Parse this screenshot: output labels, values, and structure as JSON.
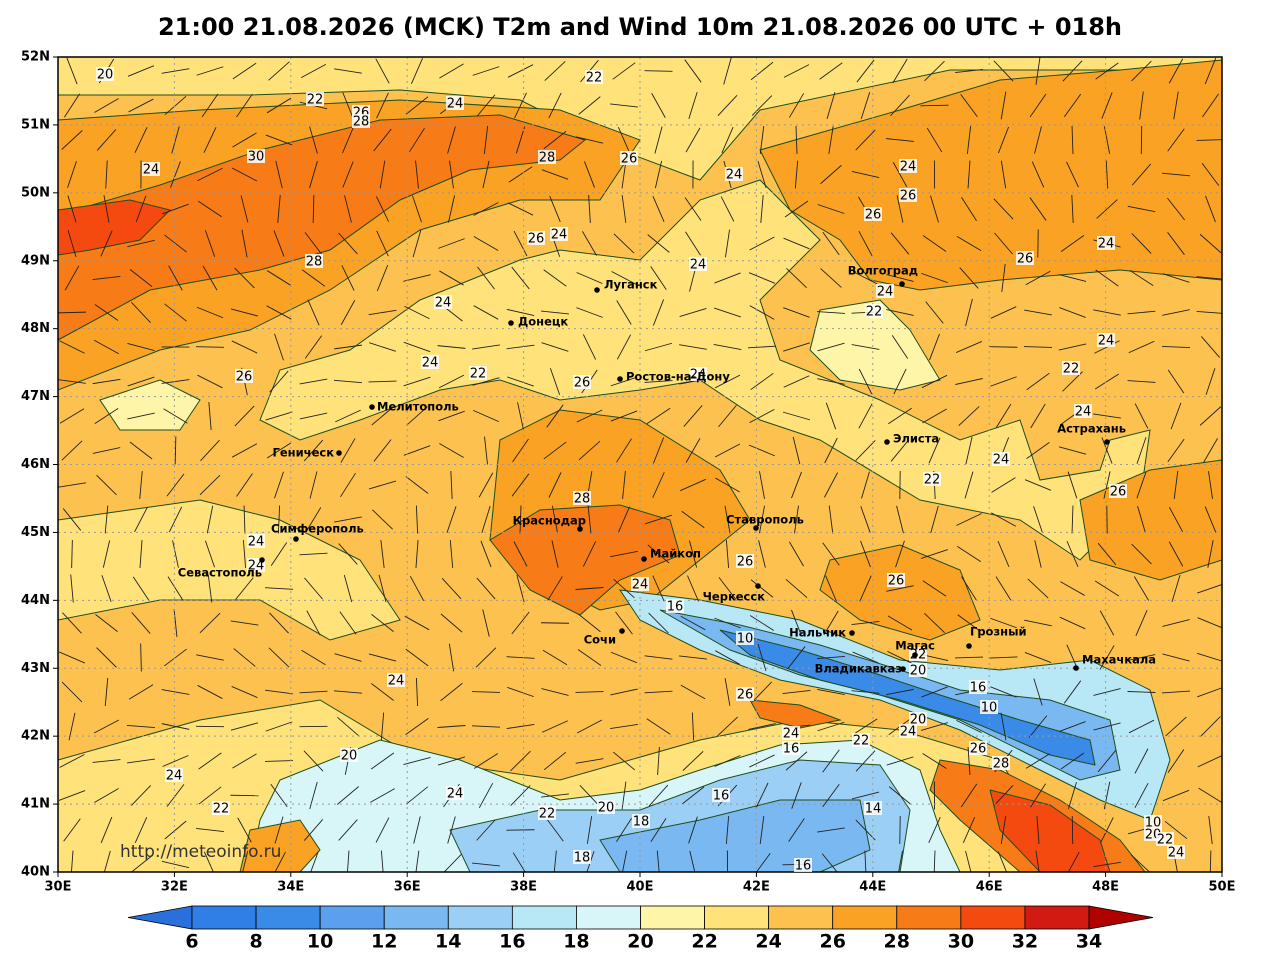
{
  "title": "21:00 21.08.2026 (MCK) T2m and Wind 10m 21.08.2026 00 UTC + 018h",
  "map": {
    "lat_labels": [
      "52N",
      "51N",
      "50N",
      "49N",
      "48N",
      "47N",
      "46N",
      "45N",
      "44N",
      "43N",
      "42N",
      "41N",
      "40N"
    ],
    "lon_labels": [
      "30E",
      "32E",
      "34E",
      "36E",
      "38E",
      "40E",
      "42E",
      "44E",
      "46E",
      "48E",
      "50E"
    ],
    "cities": [
      "Луганск",
      "Донецк",
      "Ростов-на-Дону",
      "Мелитополь",
      "Геническ",
      "Симферополь",
      "Севастополь",
      "Краснодар",
      "Майкоп",
      "Ставрополь",
      "Черкесск",
      "Сочи",
      "Нальчик",
      "Владикавказ",
      "Магас",
      "Грозный",
      "Махачкала",
      "Волгоград",
      "Элиста",
      "Астрахань"
    ],
    "contour_labels": [
      20,
      22,
      22,
      26,
      28,
      24,
      30,
      28,
      26,
      24,
      24,
      24,
      26,
      26,
      26,
      24,
      24,
      24,
      26,
      28,
      24,
      22,
      24,
      24,
      24,
      22,
      26,
      26,
      24,
      22,
      24,
      24,
      22,
      26,
      28,
      24,
      24,
      26,
      24,
      26,
      16,
      10,
      24,
      22,
      20,
      16,
      10,
      26,
      20,
      24,
      16,
      22,
      24,
      26,
      28,
      20,
      24,
      24,
      16,
      14,
      22,
      22,
      20,
      18,
      10,
      20,
      22,
      24,
      18,
      16
    ],
    "credit": "http://meteoinfo.ru"
  },
  "colorbar": {
    "ticks": [
      6,
      8,
      10,
      12,
      14,
      16,
      18,
      20,
      22,
      24,
      26,
      28,
      30,
      32,
      34
    ],
    "colors": [
      "#2a6fdb",
      "#2f7fe6",
      "#3a8ae8",
      "#5aa0ee",
      "#7ab8f2",
      "#9ccff5",
      "#b8e8f5",
      "#d8f6f8",
      "#fff5a8",
      "#ffe27a",
      "#fcc14f",
      "#f9a224",
      "#f77b16",
      "#f54a0f",
      "#d21a12",
      "#b00000"
    ]
  }
}
